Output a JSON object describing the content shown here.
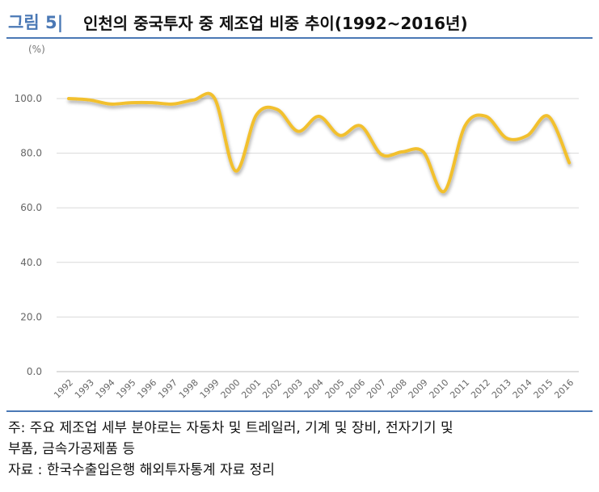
{
  "header": {
    "figure_label": "그림 5|",
    "title": "인천의 중국투자 중 제조업 비중 추이(1992~2016년)"
  },
  "chart_data": {
    "type": "line",
    "ylabel": "(%)",
    "ylim": [
      0,
      100
    ],
    "yticks": [
      "0.0",
      "20.0",
      "40.0",
      "60.0",
      "80.0",
      "100.0"
    ],
    "ytick_values": [
      0,
      20,
      40,
      60,
      80,
      100
    ],
    "grid": true,
    "line_color": "#f2c02e",
    "categories": [
      "1992",
      "1993",
      "1994",
      "1995",
      "1996",
      "1997",
      "1998",
      "1999",
      "2000",
      "2001",
      "2002",
      "2003",
      "2004",
      "2005",
      "2006",
      "2007",
      "2008",
      "2009",
      "2010",
      "2011",
      "2012",
      "2013",
      "2014",
      "2015",
      "2016"
    ],
    "series": [
      {
        "values": [
          100.0,
          99.5,
          98.0,
          98.5,
          98.5,
          98.0,
          99.5,
          100.0,
          73.5,
          94.0,
          96.0,
          88.0,
          93.5,
          86.5,
          90.0,
          79.5,
          80.5,
          80.5,
          66.0,
          90.0,
          93.5,
          85.5,
          86.5,
          93.5,
          76.5
        ]
      }
    ]
  },
  "notes": {
    "line1": "주: 주요 제조업 세부 분야로는 자동차 및 트레일러, 기계 및 장비, 전자기기 및",
    "line2": "부품, 금속가공제품 등",
    "source": "자료 : 한국수출입은행 해외투자통계 자료 정리"
  }
}
